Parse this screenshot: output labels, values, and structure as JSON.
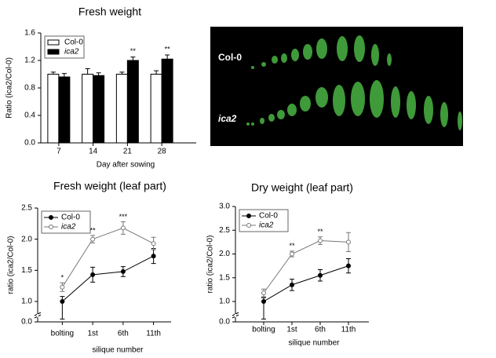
{
  "chart_data": [
    {
      "type": "bar",
      "title": "Fresh weight",
      "x_label": "Day after sowing",
      "y_label": "Ratio (ica2/Col-0)",
      "categories": [
        "7",
        "14",
        "21",
        "28"
      ],
      "series": [
        {
          "name": "Col-0",
          "color": "#ffffff",
          "values": [
            1.0,
            1.0,
            1.0,
            1.0
          ],
          "errors": [
            0.03,
            0.08,
            0.03,
            0.05
          ],
          "annotations": [
            null,
            null,
            null,
            null
          ]
        },
        {
          "name": "ica2",
          "color": "#000000",
          "values": [
            0.96,
            0.98,
            1.2,
            1.22
          ],
          "errors": [
            0.05,
            0.04,
            0.05,
            0.06
          ],
          "annotations": [
            null,
            null,
            "**",
            "**"
          ]
        }
      ],
      "ylim": [
        0,
        1.6
      ],
      "yticks": [
        {
          "value": 0,
          "label": "0.0"
        },
        {
          "value": 0.4,
          "label": "0.4"
        },
        {
          "value": 0.8,
          "label": "0.8"
        },
        {
          "value": 1.2,
          "label": "1.2"
        },
        {
          "value": 1.6,
          "label": "1.6"
        }
      ],
      "legend": "upper left"
    },
    {
      "type": "line",
      "title": "Fresh weight (leaf part)",
      "x_label": "silique number",
      "y_label": "ratio (ica2/Col-0)",
      "categories": [
        "bolting",
        "1st",
        "6th",
        "11th"
      ],
      "series": [
        {
          "name": "Col-0",
          "color": "#000000",
          "marker": "filled",
          "values": [
            1.0,
            1.43,
            1.48,
            1.73
          ],
          "errors": [
            0.08,
            0.12,
            0.08,
            0.12
          ],
          "annotations": [
            null,
            null,
            null,
            null
          ]
        },
        {
          "name": "ica2",
          "color": "#777777",
          "marker": "open",
          "values": [
            1.23,
            2.0,
            2.18,
            1.93
          ],
          "errors": [
            0.07,
            0.06,
            0.1,
            0.1
          ],
          "annotations": [
            "*",
            "**",
            "***",
            null
          ]
        }
      ],
      "ylim": [
        0,
        2.5
      ],
      "axis_break": true,
      "yticks": [
        {
          "value": 0,
          "label": "0.0"
        },
        {
          "value": 1,
          "label": "1.0"
        },
        1.5,
        {
          "value": 2,
          "label": "2.0"
        },
        2.5
      ],
      "legend": "upper left"
    },
    {
      "type": "line",
      "title": "Dry weight (leaf part)",
      "x_label": "silique number",
      "y_label": "ratio (ica2/Col-0)",
      "categories": [
        "bolting",
        "1st",
        "6th",
        "11th"
      ],
      "series": [
        {
          "name": "Col-0",
          "color": "#000000",
          "marker": "filled",
          "values": [
            1.0,
            1.35,
            1.55,
            1.75
          ],
          "errors": [
            0.08,
            0.12,
            0.12,
            0.15
          ],
          "annotations": [
            null,
            null,
            null,
            null
          ]
        },
        {
          "name": "ica2",
          "color": "#777777",
          "marker": "open",
          "values": [
            1.18,
            2.0,
            2.28,
            2.25
          ],
          "errors": [
            0.08,
            0.06,
            0.08,
            0.2
          ],
          "annotations": [
            null,
            "**",
            "**",
            null
          ]
        }
      ],
      "ylim": [
        0,
        3.0
      ],
      "axis_break": true,
      "yticks": [
        {
          "value": 0,
          "label": "0.0"
        },
        {
          "value": 1,
          "label": "1.0"
        },
        1.5,
        {
          "value": 2,
          "label": "2.0"
        },
        2.5,
        {
          "value": 3,
          "label": "3.0"
        }
      ],
      "legend": "upper left"
    }
  ],
  "image": {
    "labels": [
      "Col-0",
      "ica2"
    ]
  }
}
